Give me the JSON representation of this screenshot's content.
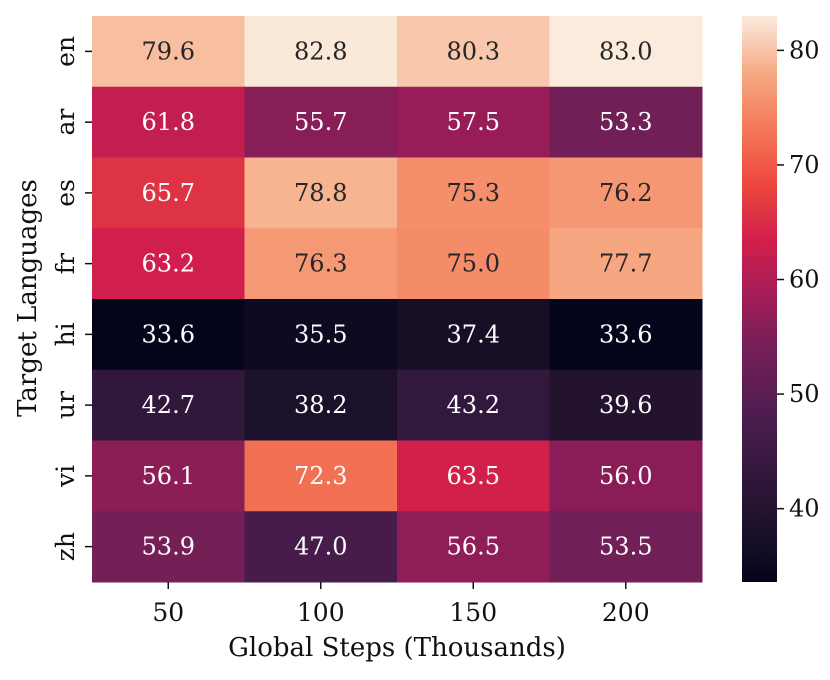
{
  "chart_data": {
    "type": "heatmap",
    "title": "",
    "xlabel": "Global Steps (Thousands)",
    "ylabel": "Target Languages",
    "x_categories": [
      "50",
      "100",
      "150",
      "200"
    ],
    "y_categories": [
      "en",
      "ar",
      "es",
      "fr",
      "hi",
      "ur",
      "vi",
      "zh"
    ],
    "values": [
      [
        79.6,
        82.8,
        80.3,
        83.0
      ],
      [
        61.8,
        55.7,
        57.5,
        53.3
      ],
      [
        65.7,
        78.8,
        75.3,
        76.2
      ],
      [
        63.2,
        76.3,
        75.0,
        77.7
      ],
      [
        33.6,
        35.5,
        37.4,
        33.6
      ],
      [
        42.7,
        38.2,
        43.2,
        39.6
      ],
      [
        56.1,
        72.3,
        63.5,
        56.0
      ],
      [
        53.9,
        47.0,
        56.5,
        53.5
      ]
    ],
    "colormap": "rocket",
    "vmin": 33.6,
    "vmax": 83.0,
    "colorbar_ticks": [
      "40",
      "50",
      "60",
      "70",
      "80"
    ],
    "colorbar_tick_values": [
      40,
      50,
      60,
      70,
      80
    ]
  }
}
